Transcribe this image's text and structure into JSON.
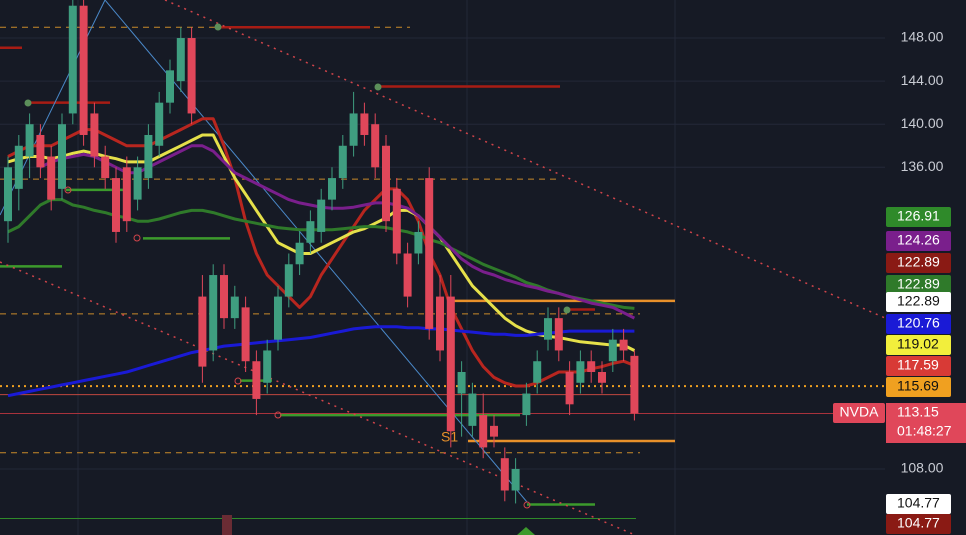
{
  "chart_data": {
    "type": "candlestick",
    "ylim": [
      101.87,
      151.53
    ],
    "yticks": [
      {
        "value": 108,
        "label": "108.00"
      },
      {
        "value": 136,
        "label": "136.00"
      },
      {
        "value": 140,
        "label": "140.00"
      },
      {
        "value": 144,
        "label": "144.00"
      },
      {
        "value": 148,
        "label": "148.00"
      }
    ],
    "grid": true,
    "up_color": "#3f9e80",
    "down_color": "#e0475a",
    "open": [
      131,
      134,
      137,
      139,
      137,
      134,
      141,
      151,
      141,
      137,
      135,
      136,
      133,
      135,
      138,
      142,
      144,
      148,
      124,
      119,
      126,
      122,
      123,
      118,
      116,
      120,
      124,
      127,
      129,
      130,
      133,
      135,
      138,
      141,
      140,
      138,
      134,
      128,
      128,
      135,
      124,
      124,
      115,
      112,
      113,
      112,
      109,
      106,
      113,
      116,
      120,
      122,
      117,
      116,
      118,
      117,
      118,
      120,
      118.5
    ],
    "high": [
      137,
      139,
      141,
      140,
      138,
      141,
      152,
      152,
      142,
      138,
      136,
      137,
      137,
      140,
      143,
      146,
      149,
      149,
      126,
      127,
      127,
      125,
      124,
      119,
      120,
      125,
      128,
      130,
      132,
      134,
      136,
      139,
      143,
      142,
      141,
      139,
      135,
      129,
      131,
      136,
      126,
      126,
      118,
      116,
      115,
      113,
      110,
      109,
      116,
      119,
      123,
      123,
      118,
      119,
      119,
      118,
      121,
      121,
      119
    ],
    "low": [
      129,
      132,
      135,
      135,
      132,
      133,
      140,
      138,
      136,
      134,
      129,
      130,
      132,
      134,
      137,
      141,
      143,
      140,
      116,
      118,
      121,
      121,
      117,
      113,
      115,
      119,
      123,
      126,
      128,
      129,
      132,
      134,
      137,
      138,
      135,
      130,
      127,
      123,
      127,
      120,
      118,
      110,
      111,
      111,
      109,
      110,
      105,
      104.8,
      112,
      115,
      119,
      118,
      113,
      115,
      116,
      115,
      117,
      118,
      112.5
    ],
    "close": [
      136,
      138,
      140,
      136,
      133,
      140,
      151,
      139,
      137,
      135,
      130,
      131,
      136,
      139,
      142,
      145,
      148,
      141,
      117.5,
      126,
      122,
      124,
      118,
      114.5,
      119,
      124,
      127,
      129,
      131,
      133,
      135,
      138,
      141,
      139,
      136,
      131,
      128,
      124,
      130,
      121,
      119,
      111.5,
      117,
      115,
      110,
      111,
      106,
      108,
      115,
      118,
      122,
      119,
      114,
      118,
      117,
      116,
      120,
      119,
      113.15
    ],
    "series": [
      {
        "name": "EMA 9",
        "color": "#b8261f",
        "values": [
          137,
          137.5,
          138,
          138,
          138,
          138.5,
          139,
          139.5,
          139.5,
          139,
          138.5,
          138,
          138,
          138,
          138.5,
          139,
          139.5,
          140,
          140.5,
          140.5,
          138,
          135,
          131,
          128,
          126,
          125,
          124,
          123,
          124,
          126,
          127.5,
          129,
          130.5,
          132,
          133,
          134,
          134,
          133,
          131,
          128,
          126,
          123,
          121,
          119,
          117.5,
          116.5,
          116,
          115.7,
          115.7,
          116,
          116.5,
          117,
          117,
          117,
          117.3,
          117.5,
          117.8,
          118,
          117.6
        ]
      },
      {
        "name": "EMA 20",
        "color": "#e5e04a",
        "values": [
          136.5,
          136.8,
          137,
          137,
          136.8,
          137,
          137.3,
          137.5,
          137.3,
          137,
          136.8,
          136.5,
          136.5,
          136.5,
          137,
          137.5,
          138,
          138.5,
          139,
          139,
          137,
          135,
          133.5,
          132,
          130.5,
          129,
          128.5,
          128,
          128,
          128.5,
          129,
          129.5,
          130,
          130.3,
          130.8,
          131.3,
          132,
          132,
          131.5,
          130.5,
          129.5,
          128,
          126.5,
          125,
          124,
          123,
          122,
          121.3,
          120.8,
          120.5,
          120.3,
          120.2,
          120,
          119.8,
          119.7,
          119.6,
          119.5,
          119.5,
          119
        ]
      },
      {
        "name": "EMA 50",
        "color": "#2f7a2a",
        "values": [
          130,
          130.5,
          131.5,
          132.5,
          133,
          133,
          132.5,
          132.3,
          132,
          131.8,
          131.5,
          131.3,
          131,
          131,
          131.2,
          131.5,
          131.8,
          132,
          132,
          131.8,
          131.5,
          131.2,
          131,
          130.8,
          130.6,
          130.4,
          130.3,
          130.2,
          130.2,
          130.2,
          130.2,
          130.3,
          130.4,
          130.5,
          130.5,
          130.4,
          130.2,
          130,
          129.7,
          129.3,
          129,
          128.5,
          128,
          127.5,
          127,
          126.6,
          126.2,
          125.8,
          125.3,
          125,
          124.6,
          124.3,
          124,
          123.8,
          123.6,
          123.4,
          123.2,
          123,
          122.9
        ]
      },
      {
        "name": "EMA 100",
        "color": "#7a1f8c",
        "values": [
          null,
          null,
          null,
          136,
          136.5,
          136.8,
          137,
          137.2,
          137,
          136.5,
          136,
          135.5,
          135.5,
          136,
          136.5,
          137,
          137.5,
          138,
          138,
          137.5,
          136.5,
          135.5,
          135,
          134.5,
          134,
          133.5,
          133,
          132.7,
          132.5,
          132.3,
          132.2,
          132.2,
          132.3,
          132.5,
          132.7,
          132.7,
          132.5,
          132.2,
          131.5,
          130.5,
          129.5,
          128.5,
          127.5,
          126.8,
          126.3,
          126,
          125.6,
          125.3,
          125,
          124.8,
          124.5,
          124.3,
          124,
          123.7,
          123.4,
          123.2,
          123,
          122.5,
          122
        ]
      },
      {
        "name": "EMA 200",
        "color": "#1a1ad6",
        "values": [
          114.8,
          115,
          115.2,
          115.4,
          115.6,
          115.8,
          116,
          116.2,
          116.4,
          116.6,
          116.8,
          117,
          117.3,
          117.6,
          117.9,
          118.2,
          118.5,
          118.8,
          119,
          119.2,
          119.4,
          119.5,
          119.6,
          119.7,
          119.8,
          119.9,
          120,
          120.1,
          120.2,
          120.4,
          120.6,
          120.8,
          121,
          121.1,
          121.2,
          121.2,
          121.2,
          121.1,
          121.1,
          121,
          121,
          120.9,
          120.8,
          120.7,
          120.6,
          120.5,
          120.5,
          120.4,
          120.4,
          120.5,
          120.6,
          120.7,
          120.8,
          120.8,
          120.8,
          120.8,
          120.8,
          120.8,
          120.8
        ]
      }
    ],
    "levels": [
      {
        "value": 149.0,
        "color": "#c98a2a",
        "style": "dashed"
      },
      {
        "value": 134.9,
        "color": "#c98a2a",
        "style": "dashed"
      },
      {
        "value": 122.4,
        "color": "#c98a2a",
        "style": "dashed"
      },
      {
        "value": 109.5,
        "color": "#c98a2a",
        "style": "dashed"
      },
      {
        "value": 149.0,
        "color": "#a81c14",
        "style": "solid"
      },
      {
        "value": 143.5,
        "color": "#a81c14",
        "style": "solid"
      },
      {
        "value": 142.0,
        "color": "#a81c14",
        "style": "solid"
      },
      {
        "value": 147.1,
        "color": "#a81c14",
        "style": "solid"
      },
      {
        "value": 122.8,
        "color": "#a81c14",
        "style": "solid"
      },
      {
        "value": 133.9,
        "color": "#3c9a2c",
        "style": "solid"
      },
      {
        "value": 129.4,
        "color": "#3c9a2c",
        "style": "solid"
      },
      {
        "value": 126.8,
        "color": "#3c9a2c",
        "style": "solid"
      },
      {
        "value": 116.2,
        "color": "#3c9a2c",
        "style": "solid"
      },
      {
        "value": 113.0,
        "color": "#3c9a2c",
        "style": "solid"
      },
      {
        "value": 104.7,
        "color": "#3c9a2c",
        "style": "solid"
      },
      {
        "value": 123.6,
        "color": "#e8902a",
        "style": "solid"
      },
      {
        "value": 110.6,
        "color": "#e8902a",
        "style": "solid"
      },
      {
        "value": 115.69,
        "color": "#f0a020",
        "style": "dotted"
      },
      {
        "value": 113.15,
        "color": "#a8323c",
        "style": "thin"
      },
      {
        "value": 114.9,
        "color": "#c0473f",
        "style": "thin"
      },
      {
        "value": 103.4,
        "color": "#2f8a2a",
        "style": "thin"
      }
    ],
    "annotations": [
      "S1"
    ],
    "price_tags": [
      {
        "value": 126.91,
        "color": "#2f8a2a",
        "text_color": "#ffffff"
      },
      {
        "value": 124.26,
        "color": "#7a1f8c",
        "text_color": "#ffffff"
      },
      {
        "value": 122.89,
        "color": "#8a1a14",
        "text_color": "#ffffff"
      },
      {
        "value": 122.89,
        "color": "#2f7a2a",
        "text_color": "#ffffff"
      },
      {
        "value": 122.89,
        "color": "#ffffff",
        "text_color": "#111111"
      },
      {
        "value": 120.76,
        "color": "#1a1ad6",
        "text_color": "#ffffff"
      },
      {
        "value": 119.02,
        "color": "#f2ee3c",
        "text_color": "#111111"
      },
      {
        "value": 117.59,
        "color": "#d83a36",
        "text_color": "#ffffff"
      },
      {
        "value": 115.69,
        "color": "#f0a020",
        "text_color": "#111111"
      },
      {
        "name": "NVDA",
        "value": 113.15,
        "time": "01:48:27",
        "color": "#e0475a",
        "text_color": "#ffffff"
      },
      {
        "value": 104.77,
        "color": "#ffffff",
        "text_color": "#111111"
      },
      {
        "value": 104.77,
        "color": "#8a1a14",
        "text_color": "#ffffff"
      }
    ]
  }
}
